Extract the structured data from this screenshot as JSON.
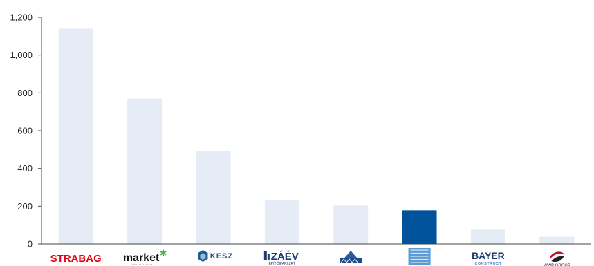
{
  "chart_data": {
    "type": "bar",
    "title": "",
    "xlabel": "",
    "ylabel": "",
    "ylim": [
      0,
      1200
    ],
    "yticks": [
      0,
      200,
      400,
      600,
      800,
      1000,
      1200
    ],
    "ytick_labels": [
      "0",
      "200",
      "400",
      "600",
      "800",
      "1,000",
      "1,200"
    ],
    "grid": false,
    "legend": "none",
    "categories": [
      "STRABAG",
      "market",
      "KESZ",
      "ZÁÉV",
      "",
      "",
      "BAYER",
      ""
    ],
    "values": [
      1140,
      770,
      493,
      232,
      203,
      178,
      75,
      38
    ],
    "bar_colors": [
      "#e6ecf5",
      "#e6ecf5",
      "#e6ecf5",
      "#e6ecf5",
      "#e6ecf5",
      "#00529b",
      "#e6ecf5",
      "#e6ecf5"
    ],
    "highlight_color": "#00529b",
    "base_color": "#e6ecf5",
    "logos": [
      {
        "name": "strabag-logo",
        "text": "STRABAG",
        "sub": "",
        "color": "#e30613"
      },
      {
        "name": "market-logo",
        "text": "market",
        "sub": "",
        "color": "#111111"
      },
      {
        "name": "kesz-logo",
        "text": "KESZ",
        "sub": "",
        "color": "#1e5a8e"
      },
      {
        "name": "zaev-logo",
        "text": "ZÁÉV",
        "sub": "ÉPÍTŐIPARI ZRT",
        "color": "#1e3a6e"
      },
      {
        "name": "hidepito-logo",
        "text": "",
        "sub": "",
        "color": "#1e4a8e"
      },
      {
        "name": "hunep-logo",
        "text": "",
        "sub": "",
        "color": "#4a8ec8"
      },
      {
        "name": "bayer-logo",
        "text": "BAYER",
        "sub": "CONSTRUCT",
        "color": "#1e3a6e"
      },
      {
        "name": "wwp-logo",
        "text": "",
        "sub": "WWP GROUP",
        "color": "#c8102e"
      }
    ]
  }
}
